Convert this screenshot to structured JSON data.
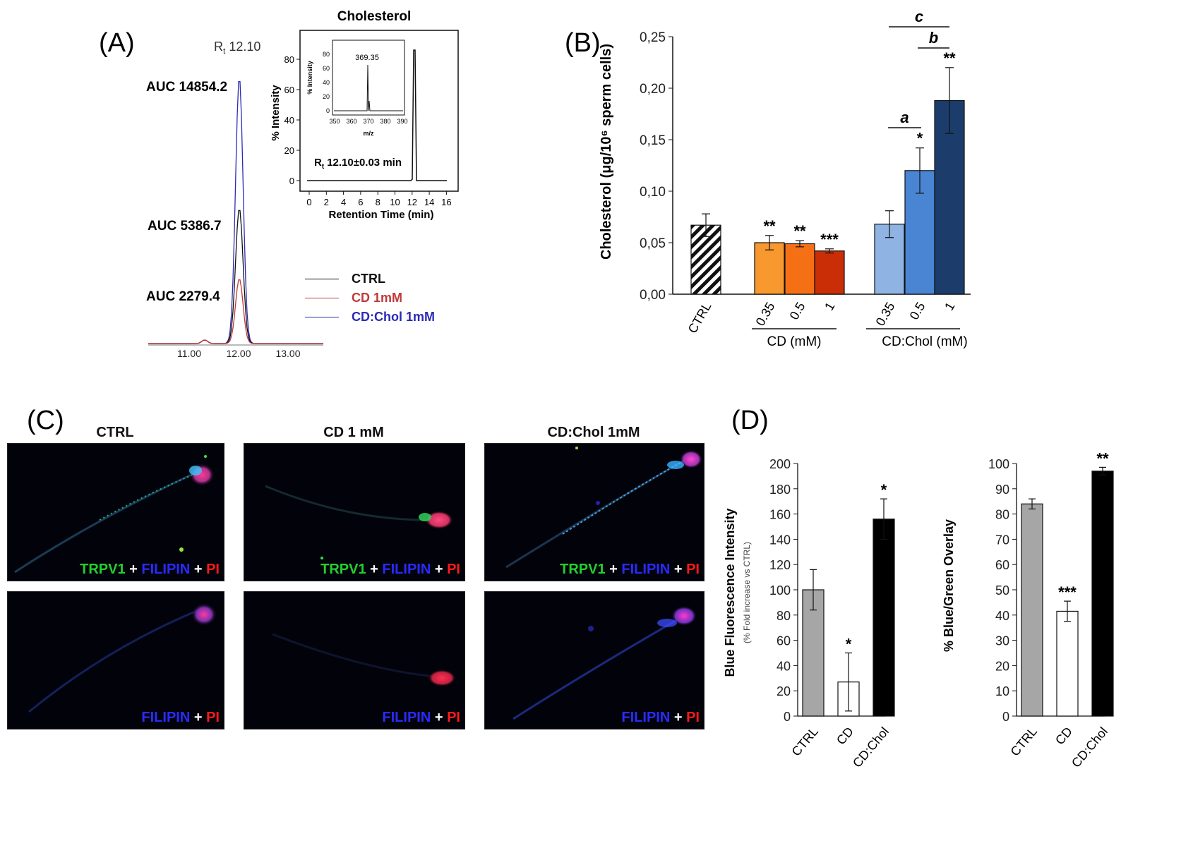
{
  "panels": {
    "a": "(A)",
    "b": "(B)",
    "c": "(C)",
    "d": "(D)"
  },
  "panel_a": {
    "rt_label": "12.10",
    "auc_labels": [
      {
        "text": "AUC 14854.2",
        "color": "#2b2bb5"
      },
      {
        "text": "AUC 5386.7",
        "color": "#111111"
      },
      {
        "text": "AUC 2279.4",
        "color": "#c0393b"
      }
    ],
    "legend": [
      {
        "label": "CTRL",
        "color": "#111111"
      },
      {
        "label": "CD 1mM",
        "color": "#c0393b"
      },
      {
        "label": "CD:Chol 1mM",
        "color": "#2b2bb5"
      }
    ],
    "ticks": [
      "11.00",
      "12.00",
      "13.00"
    ]
  },
  "inset": {
    "title": "Cholesterol",
    "xlabel": "Retention Time (min)",
    "ylabel": "% Intensity",
    "xticks": [
      "0",
      "2",
      "4",
      "6",
      "8",
      "10",
      "12",
      "14",
      "16"
    ],
    "yticks": [
      "0",
      "20",
      "40",
      "60",
      "80"
    ],
    "rt_text": "12.10±0.03 min",
    "ms_peak": "369.35",
    "ms_xticks": [
      "350",
      "360",
      "370",
      "380",
      "390"
    ],
    "ms_yticks": [
      "0",
      "20",
      "40",
      "60",
      "80"
    ],
    "ms_xlabel": "m/z",
    "ms_ylabel": "% Intensity"
  },
  "chart_data": [
    {
      "type": "bar",
      "title": "",
      "ylabel": "Cholesterol (μg/10⁶ sperm cells)",
      "ylim": [
        0,
        0.25
      ],
      "yticks": [
        "0,00",
        "0,05",
        "0,10",
        "0,15",
        "0,20",
        "0,25"
      ],
      "categories": [
        "CTRL",
        "0.35",
        "0.5",
        "1",
        "0.35",
        "0.5",
        "1"
      ],
      "groups": [
        "CD (mM)",
        "CD:Chol (mM)"
      ],
      "values": [
        0.067,
        0.05,
        0.049,
        0.042,
        0.068,
        0.12,
        0.188
      ],
      "errors": [
        0.011,
        0.007,
        0.003,
        0.002,
        0.013,
        0.022,
        0.032
      ],
      "colors": [
        "hatch",
        "#f7992e",
        "#f57015",
        "#c92e06",
        "#8fb3e2",
        "#4a85d3",
        "#1c3d6b"
      ],
      "significance": [
        "",
        "**",
        "**",
        "***",
        "",
        "*",
        "**"
      ],
      "brackets": [
        "a",
        "b",
        "c"
      ]
    },
    {
      "type": "bar",
      "ylabel": "Blue Fluorescence Intensity",
      "ysublabel": "(% Fold increase vs CTRL)",
      "ylim": [
        0,
        200
      ],
      "yticks": [
        "0",
        "20",
        "40",
        "60",
        "80",
        "100",
        "120",
        "140",
        "160",
        "180",
        "200"
      ],
      "categories": [
        "CTRL",
        "CD",
        "CD:Chol"
      ],
      "values": [
        100,
        27,
        156
      ],
      "errors": [
        16,
        23,
        16
      ],
      "colors": [
        "#a6a6a6",
        "#ffffff",
        "#000000"
      ],
      "significance": [
        "",
        "*",
        "*"
      ]
    },
    {
      "type": "bar",
      "ylabel": "% Blue/Green Overlay",
      "ylim": [
        0,
        100
      ],
      "yticks": [
        "0",
        "10",
        "20",
        "30",
        "40",
        "50",
        "60",
        "70",
        "80",
        "90",
        "100"
      ],
      "categories": [
        "CTRL",
        "CD",
        "CD:Chol"
      ],
      "values": [
        84,
        41.5,
        97
      ],
      "errors": [
        2,
        4,
        1.5
      ],
      "colors": [
        "#a6a6a6",
        "#ffffff",
        "#000000"
      ],
      "significance": [
        "",
        "***",
        "**"
      ]
    }
  ],
  "panel_c": {
    "columns": [
      "CTRL",
      "CD 1 mM",
      "CD:Chol 1mM"
    ],
    "top_label": {
      "trpv1": "TRPV1",
      "filipin": "FILIPIN",
      "pi": "PI",
      "plus": " + "
    },
    "bottom_label": {
      "filipin": "FILIPIN",
      "pi": "PI",
      "plus": " + "
    }
  }
}
